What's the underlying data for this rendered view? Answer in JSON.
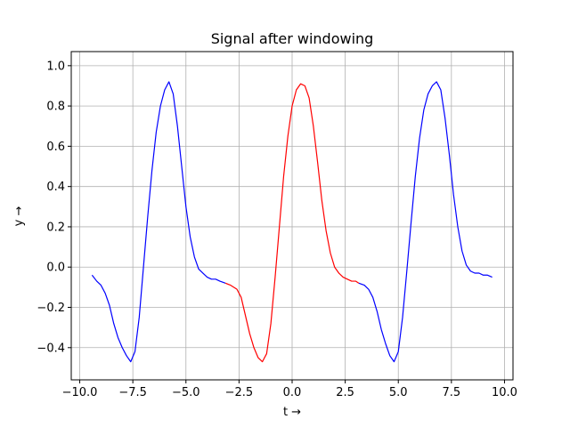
{
  "chart_data": {
    "type": "line",
    "title": "Signal after windowing",
    "xlabel": "t →",
    "ylabel": "y →",
    "xlim": [
      -10.4,
      10.4
    ],
    "ylim": [
      -0.56,
      1.07
    ],
    "grid": true,
    "x_ticks": [
      -10.0,
      -7.5,
      -5.0,
      -2.5,
      0.0,
      2.5,
      5.0,
      7.5,
      10.0
    ],
    "x_tick_labels": [
      "−10.0",
      "−7.5",
      "−5.0",
      "−2.5",
      "0.0",
      "2.5",
      "5.0",
      "7.5",
      "10.0"
    ],
    "y_ticks": [
      -0.4,
      -0.2,
      0.0,
      0.2,
      0.4,
      0.6,
      0.8,
      1.0
    ],
    "y_tick_labels": [
      "−0.4",
      "−0.2",
      "0.0",
      "0.2",
      "0.4",
      "0.6",
      "0.8",
      "1.0"
    ],
    "series": [
      {
        "color": "#0000ff",
        "x": [
          -9.42,
          -9.2,
          -9.0,
          -8.8,
          -8.6,
          -8.4,
          -8.2,
          -8.0,
          -7.8,
          -7.6,
          -7.4,
          -7.2,
          -7.0,
          -6.8,
          -6.6,
          -6.4,
          -6.2,
          -6.0,
          -5.8,
          -5.6,
          -5.4,
          -5.2,
          -5.0,
          -4.8,
          -4.6,
          -4.4,
          -4.2,
          -4.0,
          -3.8,
          -3.6,
          -3.4,
          -3.14
        ],
        "y": [
          -0.04,
          -0.07,
          -0.09,
          -0.13,
          -0.19,
          -0.28,
          -0.35,
          -0.4,
          -0.44,
          -0.47,
          -0.42,
          -0.25,
          0.0,
          0.25,
          0.48,
          0.67,
          0.8,
          0.88,
          0.92,
          0.86,
          0.7,
          0.5,
          0.3,
          0.15,
          0.05,
          -0.01,
          -0.03,
          -0.05,
          -0.06,
          -0.06,
          -0.07,
          -0.08
        ]
      },
      {
        "color": "#ff0000",
        "x": [
          -3.14,
          -2.9,
          -2.6,
          -2.4,
          -2.2,
          -2.0,
          -1.8,
          -1.6,
          -1.4,
          -1.2,
          -1.0,
          -0.8,
          -0.6,
          -0.4,
          -0.2,
          0.0,
          0.2,
          0.4,
          0.6,
          0.8,
          1.0,
          1.2,
          1.4,
          1.6,
          1.8,
          2.0,
          2.2,
          2.4,
          2.6,
          2.8,
          3.0,
          3.14
        ],
        "y": [
          -0.08,
          -0.09,
          -0.11,
          -0.15,
          -0.24,
          -0.33,
          -0.4,
          -0.45,
          -0.47,
          -0.43,
          -0.28,
          -0.05,
          0.2,
          0.45,
          0.65,
          0.8,
          0.88,
          0.91,
          0.9,
          0.84,
          0.7,
          0.52,
          0.33,
          0.18,
          0.07,
          0.0,
          -0.03,
          -0.05,
          -0.06,
          -0.07,
          -0.07,
          -0.08
        ]
      },
      {
        "color": "#0000ff",
        "x": [
          3.14,
          3.4,
          3.6,
          3.8,
          4.0,
          4.2,
          4.4,
          4.6,
          4.8,
          5.0,
          5.2,
          5.4,
          5.6,
          5.8,
          6.0,
          6.2,
          6.4,
          6.6,
          6.8,
          7.0,
          7.2,
          7.4,
          7.6,
          7.8,
          8.0,
          8.2,
          8.4,
          8.6,
          8.8,
          9.0,
          9.2,
          9.42
        ],
        "y": [
          -0.08,
          -0.09,
          -0.11,
          -0.15,
          -0.22,
          -0.31,
          -0.38,
          -0.44,
          -0.47,
          -0.42,
          -0.25,
          -0.02,
          0.22,
          0.45,
          0.64,
          0.78,
          0.86,
          0.9,
          0.92,
          0.88,
          0.74,
          0.56,
          0.36,
          0.2,
          0.08,
          0.01,
          -0.02,
          -0.03,
          -0.03,
          -0.04,
          -0.04,
          -0.05
        ]
      }
    ]
  }
}
